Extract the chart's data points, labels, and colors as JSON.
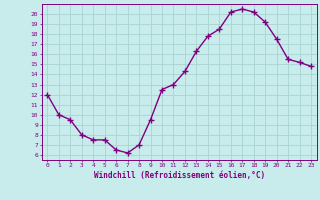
{
  "x": [
    0,
    1,
    2,
    3,
    4,
    5,
    6,
    7,
    8,
    9,
    10,
    11,
    12,
    13,
    14,
    15,
    16,
    17,
    18,
    19,
    20,
    21,
    22,
    23
  ],
  "y": [
    12,
    10,
    9.5,
    8,
    7.5,
    7.5,
    6.5,
    6.2,
    7,
    9.5,
    12.5,
    13,
    14.3,
    16.3,
    17.8,
    18.5,
    20.2,
    20.5,
    20.2,
    19.2,
    17.5,
    15.5,
    15.2,
    14.8
  ],
  "line_color": "#800080",
  "marker": "+",
  "markersize": 4,
  "linewidth": 1.0,
  "bg_color": "#c8ecec",
  "grid_color": "#a8d4d4",
  "xlabel": "Windchill (Refroidissement éolien,°C)",
  "tick_color": "#800080",
  "xlim": [
    -0.5,
    23.5
  ],
  "ylim": [
    5.5,
    21.0
  ],
  "yticks": [
    6,
    7,
    8,
    9,
    10,
    11,
    12,
    13,
    14,
    15,
    16,
    17,
    18,
    19,
    20
  ],
  "xticks": [
    0,
    1,
    2,
    3,
    4,
    5,
    6,
    7,
    8,
    9,
    10,
    11,
    12,
    13,
    14,
    15,
    16,
    17,
    18,
    19,
    20,
    21,
    22,
    23
  ]
}
